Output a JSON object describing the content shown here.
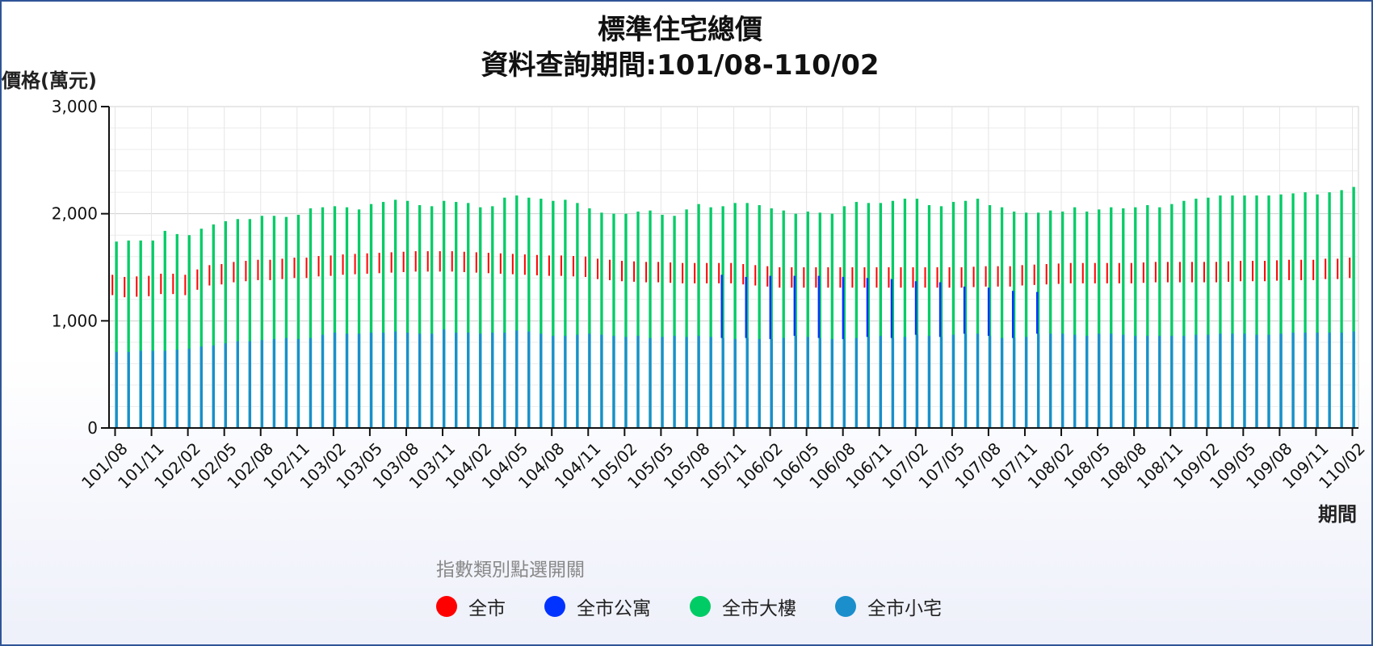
{
  "chart_data": {
    "type": "bar",
    "title": "標準住宅總價",
    "subtitle": "資料查詢期間:101/08-110/02",
    "ylabel": "價格(萬元)",
    "xlabel": "期間",
    "ylim": [
      0,
      3000
    ],
    "yticks": [
      "0",
      "1,000",
      "2,000",
      "3,000"
    ],
    "x_tick_labels": [
      "101/08",
      "101/11",
      "102/02",
      "102/05",
      "102/08",
      "102/11",
      "103/02",
      "103/05",
      "103/08",
      "103/11",
      "104/02",
      "104/05",
      "104/08",
      "104/11",
      "105/02",
      "105/05",
      "105/08",
      "105/11",
      "106/02",
      "106/05",
      "106/08",
      "106/11",
      "107/02",
      "107/05",
      "107/08",
      "107/11",
      "108/02",
      "108/05",
      "108/08",
      "108/11",
      "109/02",
      "109/05",
      "109/08",
      "109/11",
      "110/02"
    ],
    "period_count": 103,
    "grid": true,
    "legend_placement": "bottom",
    "legend_title": "指數類別點選開關",
    "series": [
      {
        "name": "全市",
        "color": "#ff0000",
        "values": [
          1370,
          1350,
          1355,
          1360,
          1380,
          1380,
          1370,
          1420,
          1460,
          1470,
          1490,
          1500,
          1510,
          1510,
          1520,
          1530,
          1530,
          1545,
          1550,
          1560,
          1565,
          1570,
          1575,
          1580,
          1585,
          1590,
          1590,
          1590,
          1590,
          1585,
          1580,
          1575,
          1570,
          1565,
          1560,
          1555,
          1550,
          1550,
          1545,
          1540,
          1520,
          1510,
          1500,
          1495,
          1490,
          1490,
          1485,
          1480,
          1480,
          1480,
          1480,
          1480,
          1470,
          1460,
          1450,
          1440,
          1440,
          1440,
          1440,
          1440,
          1440,
          1440,
          1440,
          1440,
          1440,
          1440,
          1440,
          1440,
          1440,
          1440,
          1440,
          1445,
          1450,
          1450,
          1450,
          1460,
          1465,
          1470,
          1475,
          1480,
          1480,
          1480,
          1480,
          1480,
          1480,
          1485,
          1490,
          1490,
          1490,
          1490,
          1490,
          1490,
          1495,
          1500,
          1500,
          1500,
          1505,
          1510,
          1510,
          1510,
          1520,
          1520,
          1530
        ]
      },
      {
        "name": "全市公寓",
        "color": "#0033ff",
        "values": [
          0,
          0,
          0,
          0,
          0,
          0,
          0,
          0,
          0,
          0,
          0,
          0,
          0,
          0,
          0,
          0,
          0,
          0,
          0,
          0,
          0,
          0,
          0,
          0,
          0,
          0,
          0,
          0,
          0,
          0,
          0,
          0,
          0,
          0,
          0,
          0,
          0,
          0,
          0,
          0,
          0,
          0,
          0,
          0,
          0,
          0,
          0,
          0,
          0,
          0,
          1430,
          0,
          1410,
          0,
          1420,
          0,
          1420,
          0,
          1420,
          0,
          1410,
          0,
          1400,
          0,
          1390,
          0,
          1370,
          0,
          1360,
          0,
          1320,
          0,
          1310,
          0,
          1280,
          0,
          1270,
          0,
          0,
          0,
          0,
          0,
          0,
          0,
          0,
          0,
          0,
          0,
          0,
          0,
          0,
          0,
          0,
          0,
          0,
          0,
          0,
          0,
          0,
          0,
          0,
          0,
          0
        ]
      },
      {
        "name": "全市大樓",
        "color": "#00cc66",
        "values": [
          1740,
          1750,
          1750,
          1750,
          1840,
          1810,
          1800,
          1860,
          1900,
          1930,
          1950,
          1950,
          1980,
          1980,
          1970,
          1990,
          2050,
          2060,
          2070,
          2060,
          2040,
          2090,
          2110,
          2130,
          2120,
          2080,
          2070,
          2120,
          2110,
          2100,
          2060,
          2070,
          2150,
          2170,
          2150,
          2140,
          2120,
          2130,
          2100,
          2050,
          2010,
          2000,
          2000,
          2020,
          2030,
          1990,
          1980,
          2040,
          2090,
          2060,
          2070,
          2100,
          2100,
          2080,
          2050,
          2030,
          2000,
          2020,
          2010,
          2000,
          2070,
          2110,
          2100,
          2100,
          2120,
          2140,
          2140,
          2080,
          2070,
          2110,
          2120,
          2140,
          2080,
          2060,
          2020,
          2010,
          2010,
          2030,
          2020,
          2060,
          2020,
          2040,
          2060,
          2050,
          2060,
          2080,
          2060,
          2090,
          2120,
          2140,
          2150,
          2170,
          2170,
          2170,
          2170,
          2170,
          2180,
          2190,
          2200,
          2180,
          2200,
          2220,
          2250
        ]
      },
      {
        "name": "全市小宅",
        "color": "#1a8fcc",
        "values": [
          710,
          710,
          720,
          720,
          720,
          730,
          740,
          760,
          770,
          790,
          810,
          810,
          820,
          830,
          840,
          830,
          840,
          870,
          890,
          880,
          880,
          890,
          890,
          900,
          890,
          880,
          880,
          920,
          890,
          890,
          880,
          890,
          890,
          910,
          900,
          880,
          860,
          860,
          870,
          880,
          870,
          860,
          850,
          860,
          840,
          850,
          860,
          850,
          860,
          850,
          840,
          830,
          840,
          830,
          830,
          840,
          860,
          850,
          840,
          830,
          830,
          840,
          850,
          860,
          840,
          850,
          870,
          860,
          850,
          870,
          880,
          880,
          860,
          840,
          840,
          850,
          880,
          880,
          880,
          870,
          860,
          880,
          880,
          870,
          860,
          860,
          860,
          860,
          860,
          870,
          870,
          880,
          880,
          880,
          870,
          870,
          880,
          890,
          890,
          890,
          890,
          890,
          900
        ]
      }
    ]
  }
}
